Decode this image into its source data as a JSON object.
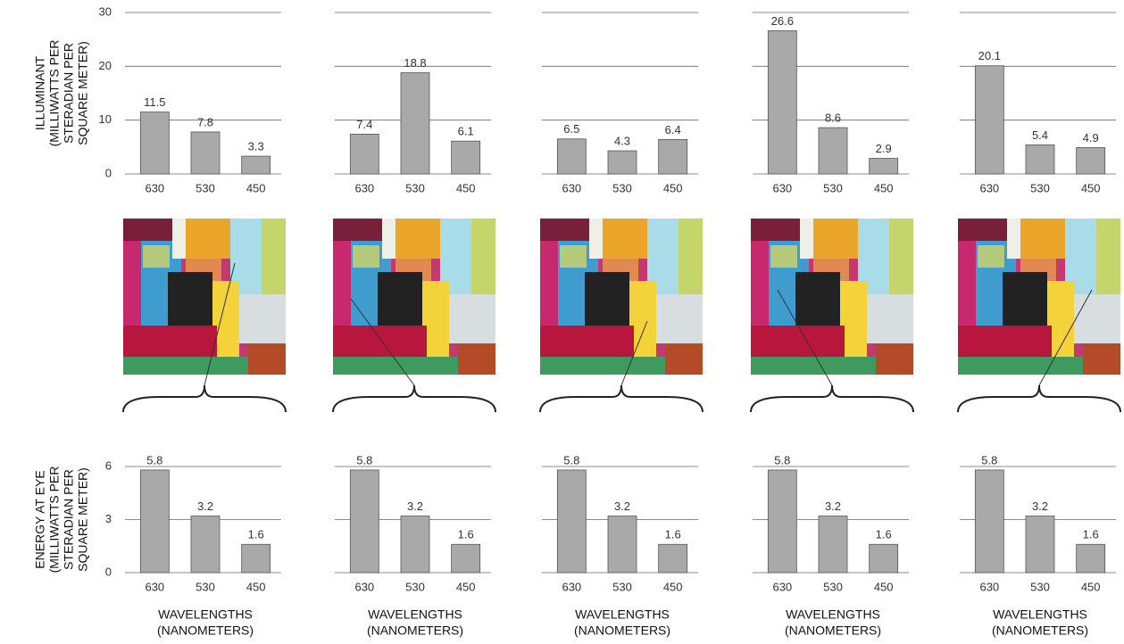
{
  "chart_data": [
    {
      "type": "bar",
      "categories": [
        "630",
        "530",
        "450"
      ],
      "values": [
        11.5,
        7.8,
        3.3
      ],
      "color": "#a9a9a9",
      "ylim": [
        0,
        30
      ],
      "yticks": [
        0,
        10,
        20,
        30
      ],
      "grid": true,
      "tick_labels": true,
      "ylabel": [
        "ILLUMINANT",
        "(MILLIWATTS PER",
        "STERADIAN PER",
        "SQUARE METER)"
      ]
    },
    {
      "type": "bar",
      "categories": [
        "630",
        "530",
        "450"
      ],
      "values": [
        7.4,
        18.8,
        6.1
      ],
      "color": "#a9a9a9",
      "ylim": [
        0,
        30
      ],
      "yticks": [
        0,
        10,
        20,
        30
      ],
      "grid": true,
      "tick_labels": false
    },
    {
      "type": "bar",
      "categories": [
        "630",
        "530",
        "450"
      ],
      "values": [
        6.5,
        4.3,
        6.4
      ],
      "color": "#a9a9a9",
      "ylim": [
        0,
        30
      ],
      "yticks": [
        0,
        10,
        20,
        30
      ],
      "grid": true,
      "tick_labels": false
    },
    {
      "type": "bar",
      "categories": [
        "630",
        "530",
        "450"
      ],
      "values": [
        26.6,
        8.6,
        2.9
      ],
      "color": "#a9a9a9",
      "ylim": [
        0,
        30
      ],
      "yticks": [
        0,
        10,
        20,
        30
      ],
      "grid": true,
      "tick_labels": false
    },
    {
      "type": "bar",
      "categories": [
        "630",
        "530",
        "450"
      ],
      "values": [
        20.1,
        5.4,
        4.9
      ],
      "color": "#a9a9a9",
      "ylim": [
        0,
        30
      ],
      "yticks": [
        0,
        10,
        20,
        30
      ],
      "grid": true,
      "tick_labels": false
    },
    {
      "type": "bar",
      "categories": [
        "630",
        "530",
        "450"
      ],
      "values": [
        5.8,
        3.2,
        1.6
      ],
      "color": "#a9a9a9",
      "ylim": [
        0,
        6
      ],
      "yticks": [
        0,
        3,
        6
      ],
      "grid": true,
      "tick_labels": true,
      "ylabel": [
        "ENERGY AT EYE",
        "(MILLIWATTS PER",
        "STERADIAN PER",
        "SQUARE METER)"
      ],
      "xlabel": [
        "WAVELENGTHS",
        "(NANOMETERS)"
      ]
    },
    {
      "type": "bar",
      "categories": [
        "630",
        "530",
        "450"
      ],
      "values": [
        5.8,
        3.2,
        1.6
      ],
      "color": "#a9a9a9",
      "ylim": [
        0,
        6
      ],
      "yticks": [
        0,
        3,
        6
      ],
      "grid": true,
      "tick_labels": false,
      "xlabel": [
        "WAVELENGTHS",
        "(NANOMETERS)"
      ]
    },
    {
      "type": "bar",
      "categories": [
        "630",
        "530",
        "450"
      ],
      "values": [
        5.8,
        3.2,
        1.6
      ],
      "color": "#a9a9a9",
      "ylim": [
        0,
        6
      ],
      "yticks": [
        0,
        3,
        6
      ],
      "grid": true,
      "tick_labels": false,
      "xlabel": [
        "WAVELENGTHS",
        "(NANOMETERS)"
      ]
    },
    {
      "type": "bar",
      "categories": [
        "630",
        "530",
        "450"
      ],
      "values": [
        5.8,
        3.2,
        1.6
      ],
      "color": "#a9a9a9",
      "ylim": [
        0,
        6
      ],
      "yticks": [
        0,
        3,
        6
      ],
      "grid": true,
      "tick_labels": false,
      "xlabel": [
        "WAVELENGTHS",
        "(NANOMETERS)"
      ]
    },
    {
      "type": "bar",
      "categories": [
        "630",
        "530",
        "450"
      ],
      "values": [
        5.8,
        3.2,
        1.6
      ],
      "color": "#a9a9a9",
      "ylim": [
        0,
        6
      ],
      "yticks": [
        0,
        3,
        6
      ],
      "grid": true,
      "tick_labels": false,
      "xlabel": [
        "WAVELENGTHS",
        "(NANOMETERS)"
      ]
    }
  ]
}
